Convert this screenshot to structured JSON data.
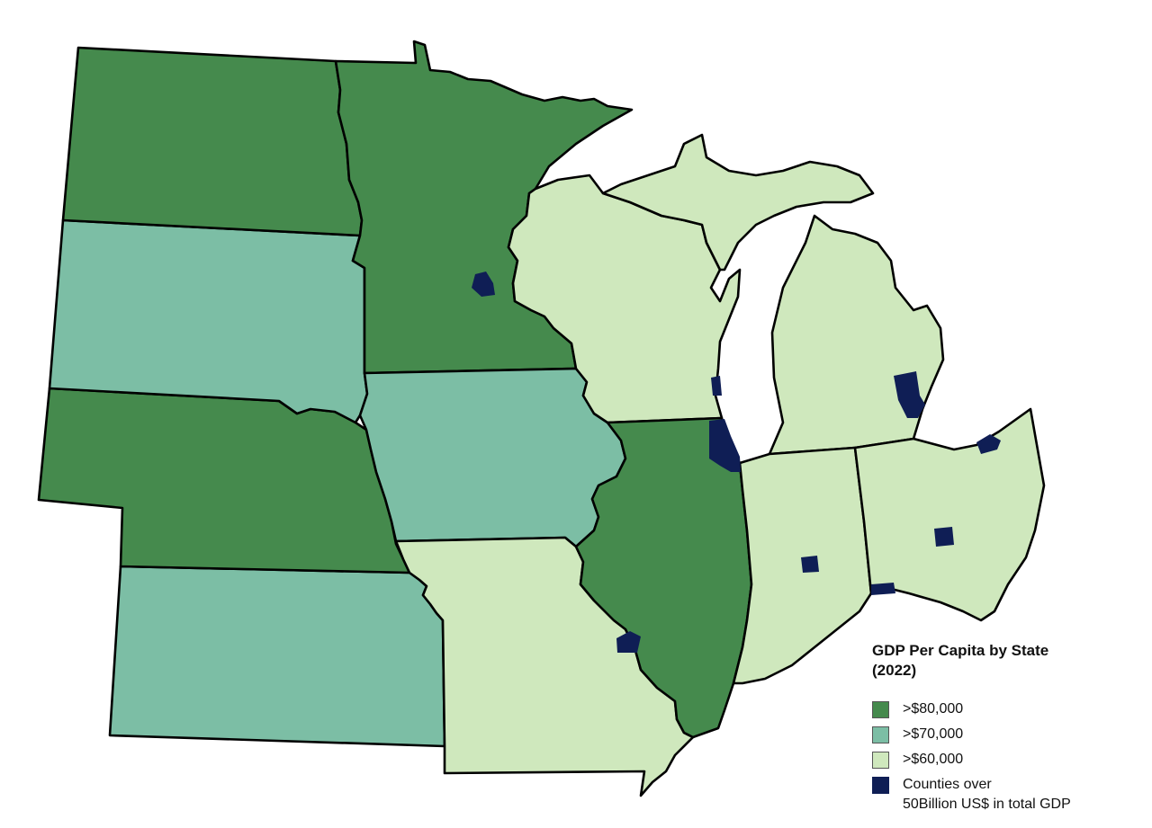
{
  "legend": {
    "title": "GDP Per Capita by State",
    "year": "(2022)",
    "items": [
      {
        "label": ">$80,000",
        "color": "#458a4d"
      },
      {
        "label": ">$70,000",
        "color": "#7cbea5"
      },
      {
        "label": ">$60,000",
        "color": "#cfe8bd"
      },
      {
        "label_line1": "Counties over",
        "label_line2": "50Billion US$ in total GDP",
        "color": "#0f1e55"
      }
    ]
  },
  "states": [
    {
      "name": "North Dakota",
      "tier": ">$80,000"
    },
    {
      "name": "South Dakota",
      "tier": ">$70,000"
    },
    {
      "name": "Nebraska",
      "tier": ">$80,000"
    },
    {
      "name": "Kansas",
      "tier": ">$70,000"
    },
    {
      "name": "Minnesota",
      "tier": ">$80,000"
    },
    {
      "name": "Iowa",
      "tier": ">$70,000"
    },
    {
      "name": "Missouri",
      "tier": ">$60,000"
    },
    {
      "name": "Wisconsin",
      "tier": ">$60,000"
    },
    {
      "name": "Illinois",
      "tier": ">$80,000"
    },
    {
      "name": "Michigan",
      "tier": ">$60,000"
    },
    {
      "name": "Indiana",
      "tier": ">$60,000"
    },
    {
      "name": "Ohio",
      "tier": ">$60,000"
    }
  ]
}
